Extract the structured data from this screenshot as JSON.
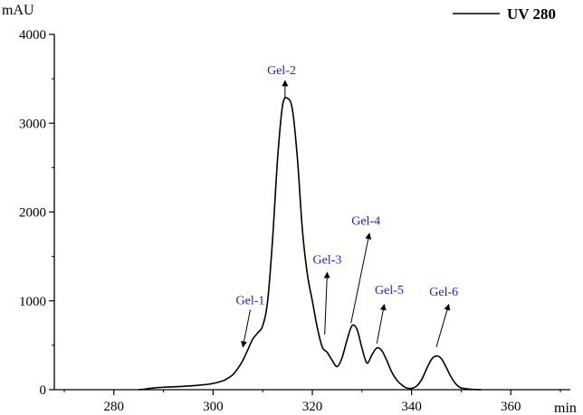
{
  "chart_data": {
    "type": "line",
    "title": "",
    "xlabel": "min",
    "ylabel": "mAU",
    "xlim": [
      268,
      372
    ],
    "ylim": [
      0,
      4000
    ],
    "x_ticks": [
      280,
      300,
      320,
      340,
      360
    ],
    "y_ticks": [
      0,
      1000,
      2000,
      3000,
      4000
    ],
    "grid": false,
    "legend": {
      "position": "top-right",
      "entries": [
        "UV 280"
      ]
    },
    "series": [
      {
        "name": "UV 280",
        "color": "#000000",
        "points": [
          [
            285,
            0
          ],
          [
            286,
            5
          ],
          [
            288,
            20
          ],
          [
            290,
            28
          ],
          [
            292,
            32
          ],
          [
            294,
            38
          ],
          [
            296,
            45
          ],
          [
            298,
            55
          ],
          [
            300,
            70
          ],
          [
            302,
            100
          ],
          [
            303,
            130
          ],
          [
            304,
            170
          ],
          [
            305,
            240
          ],
          [
            306,
            330
          ],
          [
            307,
            450
          ],
          [
            308,
            570
          ],
          [
            309,
            640
          ],
          [
            310,
            720
          ],
          [
            311,
            1000
          ],
          [
            312,
            1700
          ],
          [
            313,
            2600
          ],
          [
            314,
            3200
          ],
          [
            315,
            3280
          ],
          [
            316,
            3150
          ],
          [
            317,
            2600
          ],
          [
            318,
            1800
          ],
          [
            319,
            1300
          ],
          [
            320,
            1000
          ],
          [
            321,
            700
          ],
          [
            322,
            480
          ],
          [
            323,
            420
          ],
          [
            324,
            330
          ],
          [
            325,
            260
          ],
          [
            326,
            360
          ],
          [
            327,
            560
          ],
          [
            328,
            720
          ],
          [
            329,
            680
          ],
          [
            330,
            470
          ],
          [
            331,
            300
          ],
          [
            332,
            390
          ],
          [
            333,
            470
          ],
          [
            334,
            440
          ],
          [
            335,
            330
          ],
          [
            336,
            200
          ],
          [
            337,
            110
          ],
          [
            338,
            55
          ],
          [
            339,
            20
          ],
          [
            340,
            15
          ],
          [
            341,
            40
          ],
          [
            342,
            110
          ],
          [
            343,
            230
          ],
          [
            344,
            340
          ],
          [
            345,
            380
          ],
          [
            346,
            350
          ],
          [
            347,
            250
          ],
          [
            348,
            140
          ],
          [
            349,
            60
          ],
          [
            350,
            20
          ],
          [
            352,
            5
          ],
          [
            354,
            0
          ]
        ]
      }
    ],
    "annotations": [
      {
        "text": "Gel-1",
        "label_x": 307.5,
        "label_y": 960,
        "arrow_from": [
          307.5,
          900
        ],
        "arrow_to": [
          306,
          480
        ]
      },
      {
        "text": "Gel-2",
        "label_x": 313.8,
        "label_y": 3550,
        "arrow_from": [
          314.5,
          3290
        ],
        "arrow_to": [
          314.5,
          3480
        ]
      },
      {
        "text": "Gel-3",
        "label_x": 323,
        "label_y": 1420,
        "arrow_from": [
          322.5,
          620
        ],
        "arrow_to": [
          323,
          1320
        ]
      },
      {
        "text": "Gel-4",
        "label_x": 330.8,
        "label_y": 1860,
        "arrow_from": [
          327.8,
          750
        ],
        "arrow_to": [
          331.5,
          1760
        ]
      },
      {
        "text": "Gel-5",
        "label_x": 335.5,
        "label_y": 1080,
        "arrow_from": [
          333,
          520
        ],
        "arrow_to": [
          334.5,
          960
        ]
      },
      {
        "text": "Gel-6",
        "label_x": 346.5,
        "label_y": 1060,
        "arrow_from": [
          345,
          480
        ],
        "arrow_to": [
          347.5,
          960
        ]
      }
    ]
  }
}
